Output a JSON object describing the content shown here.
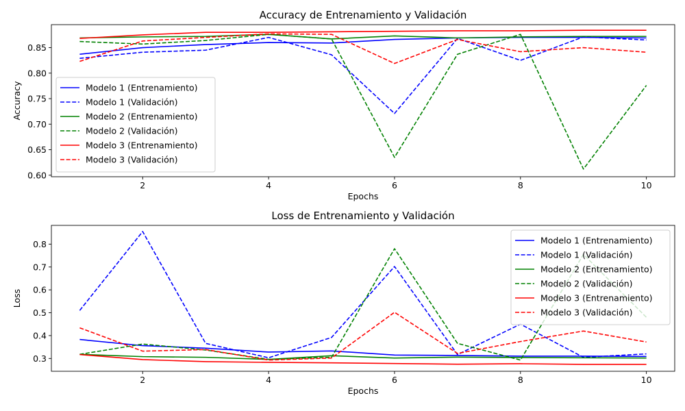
{
  "chart_data": [
    {
      "type": "line",
      "title": "Accuracy de Entrenamiento y Validación",
      "xlabel": "Epochs",
      "ylabel": "Accuracy",
      "x": [
        1,
        2,
        3,
        4,
        5,
        6,
        7,
        8,
        9,
        10
      ],
      "xlim": [
        0.55,
        10.45
      ],
      "ylim": [
        0.597,
        0.895
      ],
      "xticks": [
        2,
        4,
        6,
        8,
        10
      ],
      "yticks": [
        0.6,
        0.65,
        0.7,
        0.75,
        0.8,
        0.85
      ],
      "ytick_labels": [
        "0.60",
        "0.65",
        "0.70",
        "0.75",
        "0.80",
        "0.85"
      ],
      "grid": false,
      "legend_position": "lower-left",
      "series": [
        {
          "name": "Modelo 1 (Entrenamiento)",
          "color": "#0000ff",
          "style": "solid",
          "values": [
            0.837,
            0.85,
            0.856,
            0.86,
            0.859,
            0.866,
            0.869,
            0.87,
            0.87,
            0.869
          ]
        },
        {
          "name": "Modelo 1 (Validación)",
          "color": "#0000ff",
          "style": "dashed",
          "values": [
            0.829,
            0.841,
            0.845,
            0.87,
            0.836,
            0.721,
            0.868,
            0.825,
            0.871,
            0.865
          ]
        },
        {
          "name": "Modelo 2 (Entrenamiento)",
          "color": "#008000",
          "style": "solid",
          "values": [
            0.869,
            0.871,
            0.872,
            0.876,
            0.867,
            0.873,
            0.869,
            0.871,
            0.872,
            0.872
          ]
        },
        {
          "name": "Modelo 2 (Validación)",
          "color": "#008000",
          "style": "dashed",
          "values": [
            0.862,
            0.857,
            0.864,
            0.876,
            0.867,
            0.635,
            0.837,
            0.876,
            0.612,
            0.776
          ]
        },
        {
          "name": "Modelo 3 (Entrenamiento)",
          "color": "#ff0000",
          "style": "solid",
          "values": [
            0.868,
            0.875,
            0.88,
            0.88,
            0.881,
            0.882,
            0.883,
            0.883,
            0.884,
            0.884
          ]
        },
        {
          "name": "Modelo 3 (Validación)",
          "color": "#ff0000",
          "style": "dashed",
          "values": [
            0.823,
            0.863,
            0.87,
            0.877,
            0.876,
            0.819,
            0.866,
            0.842,
            0.85,
            0.841
          ]
        }
      ]
    },
    {
      "type": "line",
      "title": "Loss de Entrenamiento y Validación",
      "xlabel": "Epochs",
      "ylabel": "Loss",
      "x": [
        1,
        2,
        3,
        4,
        5,
        6,
        7,
        8,
        9,
        10
      ],
      "xlim": [
        0.55,
        10.45
      ],
      "ylim": [
        0.244,
        0.882
      ],
      "xticks": [
        2,
        4,
        6,
        8,
        10
      ],
      "yticks": [
        0.3,
        0.4,
        0.5,
        0.6,
        0.7,
        0.8
      ],
      "ytick_labels": [
        "0.3",
        "0.4",
        "0.5",
        "0.6",
        "0.7",
        "0.8"
      ],
      "grid": false,
      "legend_position": "upper-right",
      "series": [
        {
          "name": "Modelo 1 (Entrenamiento)",
          "color": "#0000ff",
          "style": "solid",
          "values": [
            0.383,
            0.356,
            0.345,
            0.328,
            0.333,
            0.315,
            0.313,
            0.31,
            0.31,
            0.309
          ]
        },
        {
          "name": "Modelo 1 (Validación)",
          "color": "#0000ff",
          "style": "dashed",
          "values": [
            0.51,
            0.855,
            0.366,
            0.303,
            0.392,
            0.702,
            0.317,
            0.45,
            0.305,
            0.32
          ]
        },
        {
          "name": "Modelo 2 (Entrenamiento)",
          "color": "#008000",
          "style": "solid",
          "values": [
            0.318,
            0.308,
            0.305,
            0.296,
            0.312,
            0.302,
            0.306,
            0.304,
            0.303,
            0.302
          ]
        },
        {
          "name": "Modelo 2 (Validación)",
          "color": "#008000",
          "style": "dashed",
          "values": [
            0.318,
            0.363,
            0.337,
            0.296,
            0.305,
            0.78,
            0.366,
            0.293,
            0.755,
            0.48
          ]
        },
        {
          "name": "Modelo 3 (Entrenamiento)",
          "color": "#ff0000",
          "style": "solid",
          "values": [
            0.317,
            0.295,
            0.286,
            0.283,
            0.281,
            0.278,
            0.275,
            0.277,
            0.274,
            0.274
          ]
        },
        {
          "name": "Modelo 3 (Validación)",
          "color": "#ff0000",
          "style": "dashed",
          "values": [
            0.434,
            0.332,
            0.339,
            0.293,
            0.302,
            0.502,
            0.322,
            0.374,
            0.42,
            0.372
          ]
        }
      ]
    }
  ]
}
